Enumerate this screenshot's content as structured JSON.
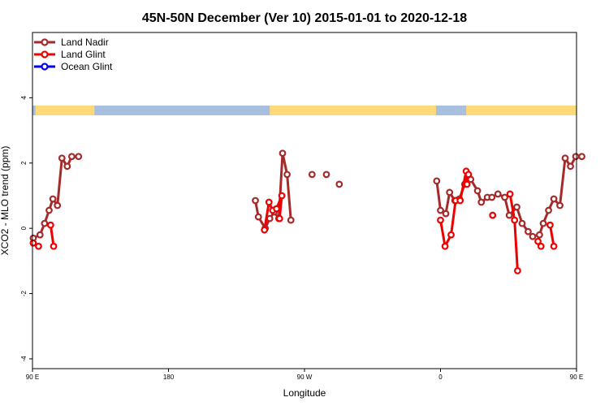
{
  "chart_data": {
    "type": "line",
    "title": "45N-50N December (Ver 10)   2015-01-01 to 2020-12-18",
    "xlabel": "Longitude",
    "ylabel": "XCO2 - MLO trend (ppm)",
    "xlim": [
      90,
      450
    ],
    "ylim": [
      -4.3,
      6
    ],
    "x_ticks": [
      {
        "value": 90,
        "label": "90 E"
      },
      {
        "value": 180,
        "label": "180"
      },
      {
        "value": 270,
        "label": "90 W"
      },
      {
        "value": 360,
        "label": "0"
      },
      {
        "value": 450,
        "label": "90 E"
      },
      {
        "value": 540,
        "label": "180"
      }
    ],
    "y_ticks": [
      -4,
      -2,
      0,
      2,
      4
    ],
    "legend_position": "top-left",
    "land_color": "#fdd97a",
    "ocean_color": "#a8bfe0",
    "land_ranges": [
      [
        92,
        131
      ],
      [
        247,
        357
      ],
      [
        377,
        453
      ],
      [
        470,
        501
      ]
    ],
    "series": [
      {
        "name": "Land Nadir",
        "color": "#a52a2a",
        "segments": [
          [
            [
              90.5,
              -0.3
            ],
            [
              95,
              -0.2
            ],
            [
              98,
              0.15
            ],
            [
              101,
              0.55
            ],
            [
              103.5,
              0.9
            ],
            [
              106.5,
              0.7
            ],
            [
              109.5,
              2.15
            ],
            [
              113,
              1.9
            ],
            [
              116,
              2.2
            ],
            [
              120.5,
              2.2
            ]
          ],
          [
            [
              237.5,
              0.85
            ],
            [
              239.5,
              0.35
            ],
            [
              244,
              0.0
            ],
            [
              247,
              0.3
            ],
            [
              250,
              0.5
            ],
            [
              253,
              0.3
            ],
            [
              255.5,
              2.3
            ],
            [
              258.5,
              1.65
            ],
            [
              261,
              0.25
            ]
          ],
          [
            [
              357.5,
              1.45
            ],
            [
              360,
              0.55
            ],
            [
              363.5,
              0.45
            ],
            [
              366,
              1.1
            ],
            [
              369.5,
              0.85
            ],
            [
              372.5,
              0.9
            ],
            [
              376,
              1.35
            ],
            [
              380,
              1.5
            ],
            [
              384.5,
              1.15
            ],
            [
              387,
              0.8
            ],
            [
              391,
              0.95
            ],
            [
              394,
              0.95
            ],
            [
              398,
              1.05
            ],
            [
              402.5,
              0.95
            ],
            [
              405.5,
              0.4
            ],
            [
              410.5,
              0.65
            ],
            [
              414,
              0.15
            ],
            [
              418,
              -0.1
            ],
            [
              421,
              -0.25
            ],
            [
              425.5,
              -0.2
            ],
            [
              428,
              0.15
            ],
            [
              431.5,
              0.55
            ],
            [
              435,
              0.9
            ],
            [
              439,
              0.7
            ],
            [
              442.5,
              2.15
            ],
            [
              446,
              1.9
            ],
            [
              449.5,
              2.2
            ],
            [
              453.5,
              2.2
            ]
          ],
          [
            [
              284.5,
              1.65
            ]
          ],
          [
            [
              275,
              1.65
            ]
          ],
          [
            [
              293,
              1.35
            ]
          ]
        ]
      },
      {
        "name": "Land Glint",
        "color": "#ee0000",
        "segments": [
          [
            [
              90.5,
              -0.45
            ],
            [
              94,
              -0.55
            ]
          ],
          [
            [
              102,
              0.1
            ],
            [
              104,
              -0.55
            ]
          ],
          [
            [
              243.5,
              -0.05
            ],
            [
              246.5,
              0.8
            ],
            [
              249,
              0.55
            ],
            [
              251.5,
              0.6
            ],
            [
              255,
              1.0
            ],
            [
              253.5,
              0.3
            ]
          ],
          [
            [
              360,
              0.25
            ],
            [
              363,
              -0.55
            ],
            [
              367,
              -0.2
            ],
            [
              370,
              0.85
            ],
            [
              373,
              0.85
            ],
            [
              377,
              1.75
            ],
            [
              377.5,
              1.35
            ],
            [
              378.5,
              1.65
            ]
          ],
          [
            [
              406,
              1.05
            ],
            [
              409,
              0.25
            ],
            [
              411,
              -1.3
            ]
          ],
          [
            [
              424.5,
              -0.4
            ],
            [
              426.5,
              -0.55
            ]
          ],
          [
            [
              432.5,
              0.1
            ],
            [
              435,
              -0.55
            ]
          ],
          [
            [
              394.5,
              0.4
            ]
          ]
        ]
      },
      {
        "name": "Ocean Glint",
        "color": "#0000ee",
        "segments": []
      }
    ]
  }
}
